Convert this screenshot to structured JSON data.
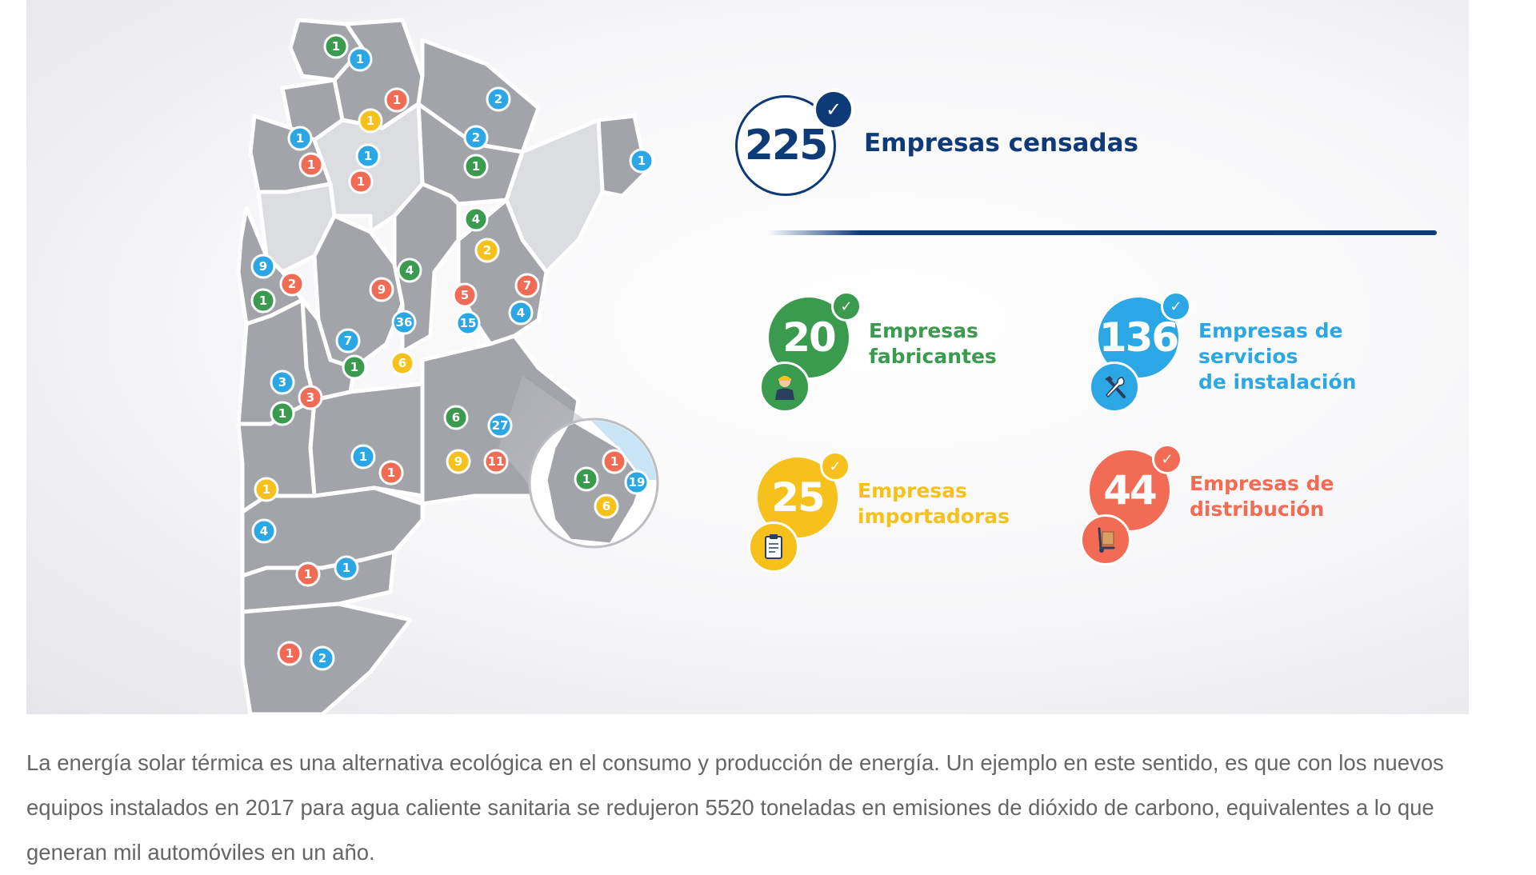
{
  "colors": {
    "navy": "#0f3a78",
    "green": "#3a9a4e",
    "blue": "#2ba7e6",
    "yellow": "#f5c11a",
    "orange": "#f26b55",
    "province": "#a3a4a9",
    "province_light": "#dcdde1"
  },
  "headline": {
    "value": "225",
    "label": "Empresas censadas",
    "check_icon": "✓"
  },
  "stats": [
    {
      "value": "20",
      "label": "Empresas\nfabricantes",
      "color": "#3a9a4e",
      "icon": "worker-icon"
    },
    {
      "value": "136",
      "label": "Empresas de servicios\nde instalación",
      "color": "#2ba7e6",
      "icon": "tools-icon"
    },
    {
      "value": "25",
      "label": "Empresas\nimportadoras",
      "color": "#f5c11a",
      "icon": "clipboard-icon"
    },
    {
      "value": "44",
      "label": "Empresas de\ndistribución",
      "color": "#f26b55",
      "icon": "hand-truck-icon"
    }
  ],
  "map": {
    "markers": [
      {
        "value": "1",
        "color": "green"
      },
      {
        "value": "1",
        "color": "blue"
      },
      {
        "value": "1",
        "color": "orange"
      },
      {
        "value": "1",
        "color": "yellow"
      },
      {
        "value": "2",
        "color": "blue"
      },
      {
        "value": "1",
        "color": "blue"
      },
      {
        "value": "1",
        "color": "orange"
      },
      {
        "value": "1",
        "color": "blue"
      },
      {
        "value": "1",
        "color": "orange"
      },
      {
        "value": "2",
        "color": "blue"
      },
      {
        "value": "1",
        "color": "green"
      },
      {
        "value": "1",
        "color": "blue"
      },
      {
        "value": "4",
        "color": "green"
      },
      {
        "value": "2",
        "color": "yellow"
      },
      {
        "value": "9",
        "color": "blue"
      },
      {
        "value": "2",
        "color": "orange"
      },
      {
        "value": "1",
        "color": "green"
      },
      {
        "value": "4",
        "color": "green"
      },
      {
        "value": "9",
        "color": "orange"
      },
      {
        "value": "5",
        "color": "orange"
      },
      {
        "value": "7",
        "color": "orange"
      },
      {
        "value": "36",
        "color": "blue"
      },
      {
        "value": "15",
        "color": "blue"
      },
      {
        "value": "4",
        "color": "blue"
      },
      {
        "value": "7",
        "color": "blue"
      },
      {
        "value": "1",
        "color": "green"
      },
      {
        "value": "6",
        "color": "yellow"
      },
      {
        "value": "3",
        "color": "blue"
      },
      {
        "value": "3",
        "color": "orange"
      },
      {
        "value": "1",
        "color": "green"
      },
      {
        "value": "6",
        "color": "green"
      },
      {
        "value": "27",
        "color": "blue"
      },
      {
        "value": "1",
        "color": "blue"
      },
      {
        "value": "1",
        "color": "orange"
      },
      {
        "value": "9",
        "color": "yellow"
      },
      {
        "value": "11",
        "color": "orange"
      },
      {
        "value": "1",
        "color": "yellow"
      },
      {
        "value": "4",
        "color": "blue"
      },
      {
        "value": "1",
        "color": "orange"
      },
      {
        "value": "1",
        "color": "blue"
      },
      {
        "value": "1",
        "color": "orange"
      },
      {
        "value": "2",
        "color": "blue"
      },
      {
        "value": "1",
        "color": "orange"
      },
      {
        "value": "1",
        "color": "green"
      },
      {
        "value": "19",
        "color": "blue"
      },
      {
        "value": "6",
        "color": "yellow"
      }
    ]
  },
  "caption": "La energía solar térmica es una alternativa ecológica en el consumo y producción de energía. Un ejemplo en este sentido, es que con los nuevos equipos instalados en 2017 para agua caliente sanitaria se redujeron 5520 toneladas en emisiones de dióxido de carbono, equivalentes a lo que generan mil automóviles en un año."
}
